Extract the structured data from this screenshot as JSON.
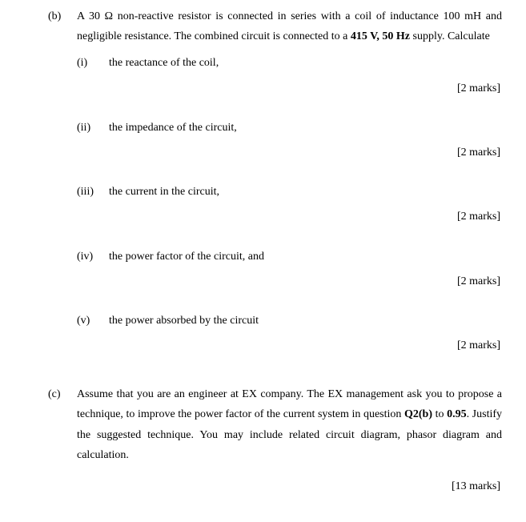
{
  "partB": {
    "label": "(b)",
    "intro_html": "A 30 Ω non-reactive resistor is connected in series with a coil of inductance 100 mH and negligible resistance. The combined circuit is connected to a <b>415 V, 50 Hz</b> supply. Calculate",
    "items": [
      {
        "label": "(i)",
        "text": "the reactance of the coil,",
        "marks": "[2 marks]"
      },
      {
        "label": "(ii)",
        "text": "the impedance of the circuit,",
        "marks": "[2 marks]"
      },
      {
        "label": "(iii)",
        "text": "the current in the circuit,",
        "marks": "[2 marks]"
      },
      {
        "label": "(iv)",
        "text": "the power factor of the circuit, and",
        "marks": "[2 marks]"
      },
      {
        "label": "(v)",
        "text": "the power absorbed by the circuit",
        "marks": "[2 marks]"
      }
    ]
  },
  "partC": {
    "label": "(c)",
    "text_html": "Assume that you are an engineer at EX company. The EX management ask you to propose a technique, to improve the power factor of the current system in question <b>Q2(b)</b> to <b>0.95</b>. Justify the suggested technique. You may include related circuit diagram, phasor diagram and calculation.",
    "marks": "[13 marks]"
  }
}
